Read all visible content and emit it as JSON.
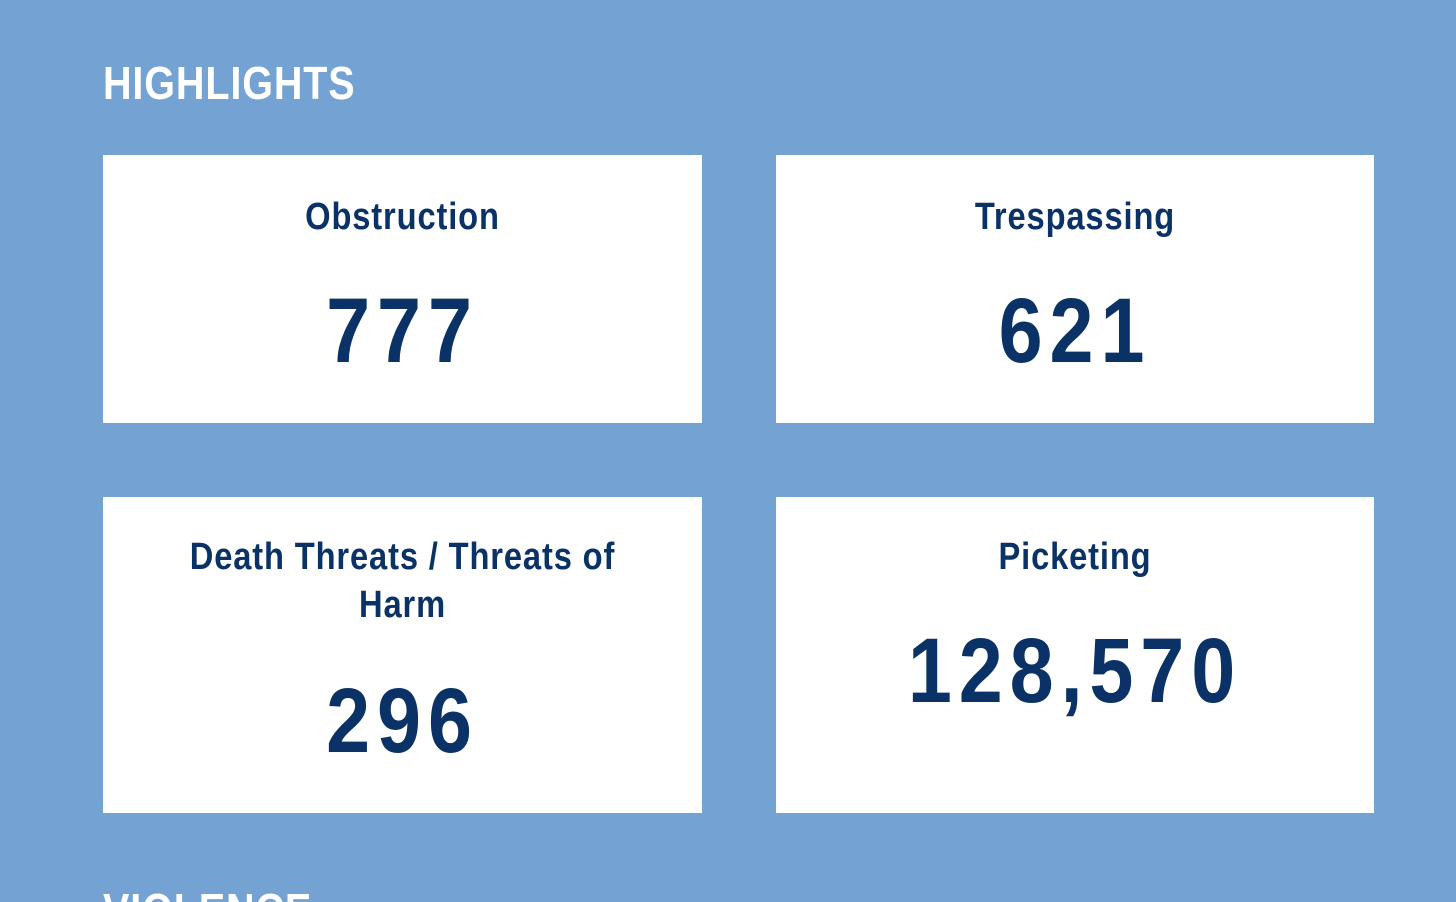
{
  "section": {
    "title": "HIGHLIGHTS"
  },
  "cards": [
    {
      "label": "Obstruction",
      "value": "777"
    },
    {
      "label": "Trespassing",
      "value": "621"
    },
    {
      "label": "Death Threats / Threats of Harm",
      "value": "296"
    },
    {
      "label": "Picketing",
      "value": "128,570"
    }
  ],
  "next_section": {
    "title": "VIOLENCE"
  },
  "colors": {
    "background": "#74a2d3",
    "card": "#ffffff",
    "text_dark": "#0b3266",
    "text_light": "#ffffff"
  }
}
